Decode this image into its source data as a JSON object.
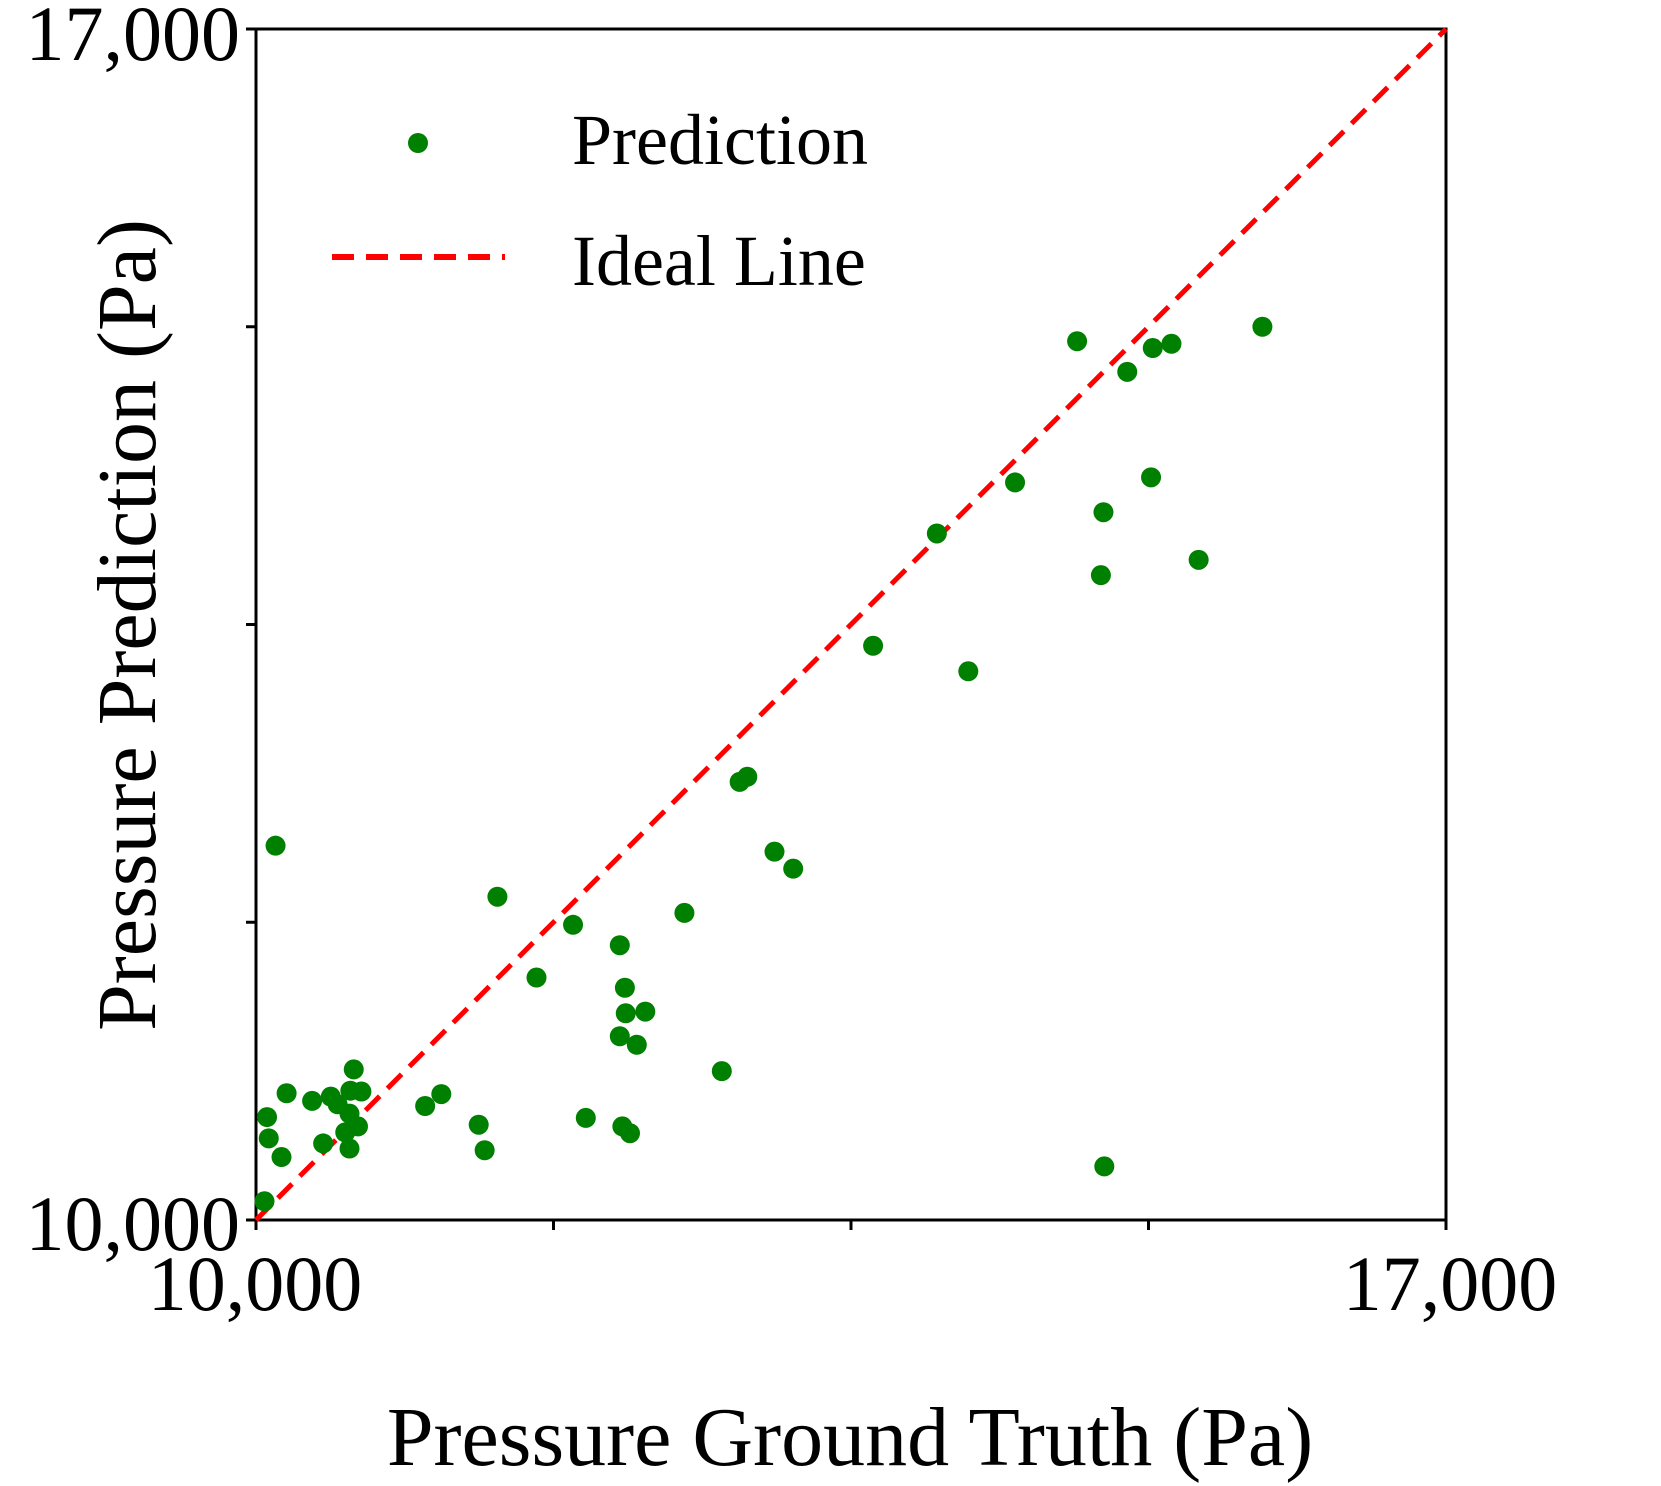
{
  "chart_data": {
    "type": "scatter",
    "title": "",
    "xlabel": "Pressure Ground Truth (Pa)",
    "ylabel": "Pressure Prediction (Pa)",
    "xlim": [
      10000,
      17000
    ],
    "ylim": [
      10000,
      17000
    ],
    "x_tick_values": [
      10000,
      11750,
      13500,
      15250,
      17000
    ],
    "y_tick_values": [
      10000,
      11750,
      13500,
      15250,
      17000
    ],
    "x_tick_labels": [
      "10,000",
      "17,000"
    ],
    "y_tick_labels": [
      "10,000",
      "17,000"
    ],
    "grid": false,
    "legend": {
      "position": "top-left",
      "entries": [
        {
          "label": "Prediction",
          "marker": "dot",
          "color": "#008000"
        },
        {
          "label": "Ideal Line",
          "marker": "dashed-line",
          "color": "#ff0000"
        }
      ]
    },
    "ideal_line": {
      "x": [
        10000,
        17000
      ],
      "y": [
        10000,
        17000
      ],
      "color": "#ff0000",
      "style": "dashed"
    },
    "series": [
      {
        "name": "Prediction",
        "color": "#008000",
        "x": [
          10050,
          10065,
          10075,
          10115,
          10150,
          10180,
          10330,
          10395,
          10440,
          10480,
          10525,
          10550,
          10550,
          10555,
          10575,
          10620,
          10600,
          10995,
          11090,
          11310,
          11345,
          11420,
          11650,
          11865,
          11940,
          12175,
          12140,
          12155,
          12200,
          12170,
          12240,
          12290,
          12140,
          12740,
          12845,
          13050,
          13160,
          12890,
          12520,
          13630,
          14190,
          14465,
          14005,
          14970,
          15275,
          15265,
          14985,
          15125,
          15385,
          15920,
          14990,
          15545,
          14830
        ],
        "y": [
          10110,
          10605,
          10480,
          12200,
          10370,
          10745,
          10700,
          10450,
          10725,
          10680,
          10515,
          10625,
          10420,
          10760,
          10885,
          10755,
          10550,
          10670,
          10740,
          10560,
          10410,
          11900,
          11425,
          11735,
          10600,
          11215,
          11080,
          10550,
          10510,
          11365,
          11030,
          11225,
          11615,
          10875,
          12575,
          12165,
          12065,
          12605,
          11805,
          13375,
          13225,
          14335,
          14035,
          13790,
          15125,
          14365,
          14160,
          14985,
          15150,
          15250,
          10315,
          13880,
          15165
        ]
      }
    ]
  }
}
